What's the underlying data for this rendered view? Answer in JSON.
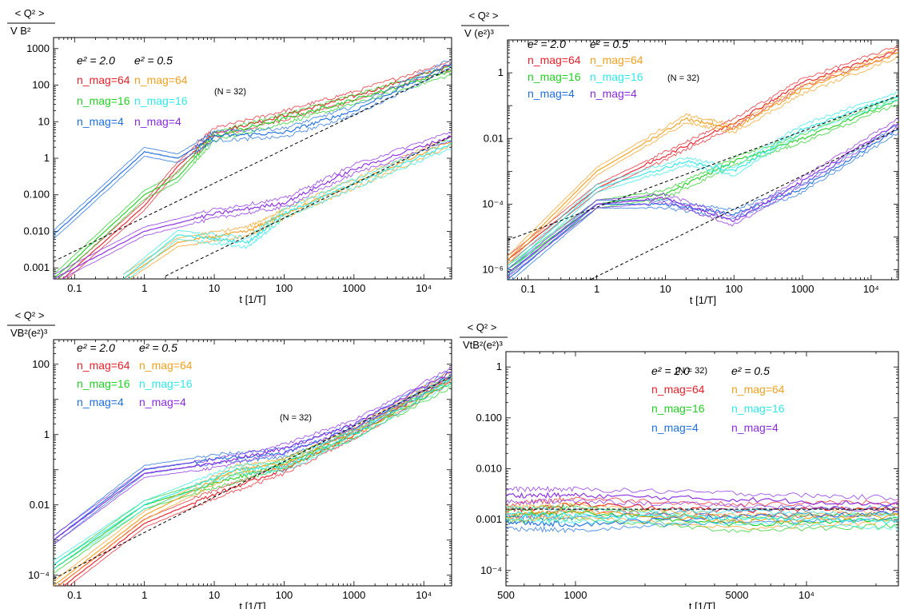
{
  "chart_data": [
    {
      "type": "line",
      "panel": "top-left",
      "y_label_numerator": "< Q² >",
      "y_label_denominator": "V B²",
      "xlabel": "t [1/T]",
      "x_scale": "log",
      "y_scale": "log",
      "xlim": [
        0.05,
        25000
      ],
      "ylim": [
        0.0005,
        2000
      ],
      "x_tick_labels": [
        "0.1",
        "1",
        "10",
        "100",
        "1000",
        "10⁴"
      ],
      "y_tick_labels": [
        "0.001",
        "0.010",
        "0.100",
        "1",
        "10",
        "100",
        "1000"
      ],
      "annotation": "(N = 32)",
      "legend_headers": [
        "e² = 2.0",
        "e² = 0.5"
      ],
      "legend": [
        "n_mag=64",
        "n_mag=16",
        "n_mag=4",
        "n_mag=64",
        "n_mag=16",
        "n_mag=4"
      ],
      "reference_lines": [
        {
          "x": [
            0.05,
            25000
          ],
          "y": [
            0.0015,
            300
          ]
        },
        {
          "x": [
            2,
            25000
          ],
          "y": [
            0.0006,
            4
          ]
        }
      ],
      "series": [
        {
          "name": "n_mag=64, e²=2.0",
          "color": "#e8202a",
          "x": [
            0.05,
            1,
            3,
            10,
            100,
            1000,
            25000
          ],
          "y": [
            0.0003,
            0.05,
            0.6,
            5,
            15,
            50,
            350
          ]
        },
        {
          "name": "n_mag=16, e²=2.0",
          "color": "#22d022",
          "x": [
            0.05,
            1,
            3,
            10,
            100,
            1000,
            25000
          ],
          "y": [
            0.0005,
            0.1,
            0.3,
            4,
            12,
            40,
            250
          ]
        },
        {
          "name": "n_mag=4, e²=2.0",
          "color": "#1e6fe0",
          "x": [
            0.05,
            1,
            3,
            10,
            100,
            1000,
            25000
          ],
          "y": [
            0.008,
            1.5,
            1,
            4,
            5,
            20,
            400
          ]
        },
        {
          "name": "n_mag=64, e²=0.5",
          "color": "#f2a01e",
          "x": [
            0.5,
            3,
            30,
            100,
            1000,
            25000
          ],
          "y": [
            0.0005,
            0.005,
            0.01,
            0.03,
            0.2,
            3
          ]
        },
        {
          "name": "n_mag=16, e²=0.5",
          "color": "#30e8e8",
          "x": [
            0.5,
            3,
            30,
            100,
            1000,
            25000
          ],
          "y": [
            0.0005,
            0.008,
            0.005,
            0.03,
            0.2,
            2.5
          ]
        },
        {
          "name": "n_mag=4, e²=0.5",
          "color": "#8a2be2",
          "x": [
            0.05,
            1,
            10,
            100,
            1000,
            25000
          ],
          "y": [
            0.0005,
            0.01,
            0.03,
            0.06,
            0.5,
            4
          ]
        }
      ]
    },
    {
      "type": "line",
      "panel": "top-right",
      "y_label_numerator": "< Q² >",
      "y_label_denominator": "V (e²)³",
      "xlabel": "t [1/T]",
      "x_scale": "log",
      "y_scale": "log",
      "xlim": [
        0.05,
        25000
      ],
      "ylim": [
        5e-07,
        10
      ],
      "x_tick_labels": [
        "0.1",
        "1",
        "10",
        "100",
        "1000",
        "10⁴"
      ],
      "y_tick_labels": [
        "10⁻⁶",
        "10⁻⁴",
        "0.01",
        "1"
      ],
      "annotation": "(N = 32)",
      "legend_headers": [
        "e² = 2.0",
        "e² = 0.5"
      ],
      "legend": [
        "n_mag=64",
        "n_mag=16",
        "n_mag=4",
        "n_mag=64",
        "n_mag=16",
        "n_mag=4"
      ],
      "reference_lines": [
        {
          "x": [
            0.05,
            25000
          ],
          "y": [
            8e-06,
            0.2
          ]
        },
        {
          "x": [
            0.8,
            25000
          ],
          "y": [
            5e-07,
            0.02
          ]
        }
      ],
      "series": [
        {
          "name": "n_mag=64, e²=2.0",
          "color": "#e8202a",
          "x": [
            0.05,
            1,
            10,
            100,
            1000,
            25000
          ],
          "y": [
            2e-06,
            0.0003,
            0.003,
            0.03,
            0.5,
            5
          ]
        },
        {
          "name": "n_mag=16, e²=2.0",
          "color": "#22d022",
          "x": [
            0.05,
            1,
            10,
            100,
            1000,
            25000
          ],
          "y": [
            1e-06,
            0.0001,
            0.0002,
            0.002,
            0.01,
            0.15
          ]
        },
        {
          "name": "n_mag=4, e²=2.0",
          "color": "#1e6fe0",
          "x": [
            0.05,
            1,
            10,
            100,
            1000,
            25000
          ],
          "y": [
            5e-07,
            0.0001,
            0.0001,
            5e-05,
            0.0003,
            0.02
          ]
        },
        {
          "name": "n_mag=64, e²=0.5",
          "color": "#f2a01e",
          "x": [
            0.05,
            1,
            20,
            100,
            1000,
            25000
          ],
          "y": [
            2e-06,
            0.001,
            0.04,
            0.02,
            0.3,
            4
          ]
        },
        {
          "name": "n_mag=16, e²=0.5",
          "color": "#30e8e8",
          "x": [
            0.05,
            1,
            20,
            100,
            1000,
            25000
          ],
          "y": [
            1e-06,
            0.0003,
            0.002,
            0.001,
            0.02,
            0.2
          ]
        },
        {
          "name": "n_mag=4, e²=0.5",
          "color": "#8a2be2",
          "x": [
            0.05,
            1,
            10,
            100,
            1000,
            25000
          ],
          "y": [
            8e-07,
            0.0001,
            0.00015,
            3e-05,
            0.0005,
            0.03
          ]
        }
      ]
    },
    {
      "type": "line",
      "panel": "bottom-left",
      "y_label_numerator": "< Q² >",
      "y_label_denominator": "VB²(e²)³",
      "xlabel": "t [1/T]",
      "x_scale": "log",
      "y_scale": "log",
      "xlim": [
        0.05,
        25000
      ],
      "ylim": [
        5e-05,
        500
      ],
      "x_tick_labels": [
        "0.1",
        "1",
        "10",
        "100",
        "1000",
        "10⁴"
      ],
      "y_tick_labels": [
        "10⁻⁴",
        "0.01",
        "1",
        "100"
      ],
      "annotation": "(N = 32)",
      "legend_headers": [
        "e² = 2.0",
        "e² = 0.5"
      ],
      "legend": [
        "n_mag=64",
        "n_mag=16",
        "n_mag=4",
        "n_mag=64",
        "n_mag=16",
        "n_mag=4"
      ],
      "reference_lines": [
        {
          "x": [
            0.05,
            25000
          ],
          "y": [
            8e-05,
            45
          ]
        }
      ],
      "series": [
        {
          "name": "n_mag=64, e²=2.0",
          "color": "#e8202a",
          "x": [
            0.05,
            1,
            10,
            100,
            1000,
            25000
          ],
          "y": [
            3e-05,
            0.003,
            0.02,
            0.1,
            1,
            40
          ]
        },
        {
          "name": "n_mag=16, e²=2.0",
          "color": "#22d022",
          "x": [
            0.05,
            1,
            10,
            100,
            1000,
            25000
          ],
          "y": [
            0.00015,
            0.01,
            0.04,
            0.15,
            1,
            30
          ]
        },
        {
          "name": "n_mag=4, e²=2.0",
          "color": "#1e6fe0",
          "x": [
            0.05,
            1,
            10,
            100,
            1000,
            25000
          ],
          "y": [
            0.001,
            0.1,
            0.2,
            0.3,
            1.5,
            50
          ]
        },
        {
          "name": "n_mag=64, e²=0.5",
          "color": "#f2a01e",
          "x": [
            0.05,
            1,
            20,
            100,
            1000,
            25000
          ],
          "y": [
            5e-05,
            0.005,
            0.1,
            0.15,
            1.2,
            50
          ]
        },
        {
          "name": "n_mag=16, e²=0.5",
          "color": "#30e8e8",
          "x": [
            0.05,
            1,
            20,
            100,
            1000,
            25000
          ],
          "y": [
            0.0002,
            0.01,
            0.1,
            0.12,
            1,
            40
          ]
        },
        {
          "name": "n_mag=4, e²=0.5",
          "color": "#8a2be2",
          "x": [
            0.05,
            1,
            10,
            100,
            1000,
            25000
          ],
          "y": [
            0.001,
            0.08,
            0.15,
            0.4,
            2,
            60
          ]
        }
      ]
    },
    {
      "type": "line",
      "panel": "bottom-right",
      "y_label_numerator": "< Q² >",
      "y_label_denominator": "VtB²(e²)³",
      "xlabel": "t [1/T]",
      "x_scale": "log",
      "y_scale": "log",
      "xlim": [
        500,
        25000
      ],
      "ylim": [
        5e-05,
        2
      ],
      "x_tick_labels": [
        "500",
        "1000",
        "5000",
        "10⁴"
      ],
      "y_tick_labels": [
        "10⁻⁴",
        "0.001",
        "0.010",
        "0.100",
        "1"
      ],
      "annotation": "(N = 32)",
      "legend_headers": [
        "e² = 2.0",
        "e² = 0.5"
      ],
      "legend": [
        "n_mag=64",
        "n_mag=16",
        "n_mag=4",
        "n_mag=64",
        "n_mag=16",
        "n_mag=4"
      ],
      "reference_lines": [
        {
          "x": [
            500,
            25000
          ],
          "y": [
            0.0016,
            0.0016
          ]
        }
      ],
      "series": [
        {
          "name": "n_mag=64, e²=2.0",
          "color": "#e8202a",
          "x": [
            500,
            1000,
            5000,
            25000
          ],
          "y": [
            0.0015,
            0.002,
            0.0015,
            0.0017
          ]
        },
        {
          "name": "n_mag=16, e²=2.0",
          "color": "#22d022",
          "x": [
            500,
            1000,
            5000,
            25000
          ],
          "y": [
            0.0012,
            0.0014,
            0.0008,
            0.001
          ]
        },
        {
          "name": "n_mag=4, e²=2.0",
          "color": "#1e6fe0",
          "x": [
            500,
            1000,
            5000,
            25000
          ],
          "y": [
            0.0009,
            0.0008,
            0.0012,
            0.0013
          ]
        },
        {
          "name": "n_mag=64, e²=0.5",
          "color": "#f2a01e",
          "x": [
            500,
            1000,
            5000,
            25000
          ],
          "y": [
            0.0013,
            0.0015,
            0.0009,
            0.0012
          ]
        },
        {
          "name": "n_mag=16, e²=0.5",
          "color": "#30e8e8",
          "x": [
            500,
            1000,
            5000,
            25000
          ],
          "y": [
            0.0013,
            0.0012,
            0.0011,
            0.0009
          ]
        },
        {
          "name": "n_mag=4, e²=0.5",
          "color": "#8a2be2",
          "x": [
            500,
            1000,
            5000,
            25000
          ],
          "y": [
            0.003,
            0.003,
            0.0025,
            0.002
          ]
        }
      ]
    }
  ]
}
